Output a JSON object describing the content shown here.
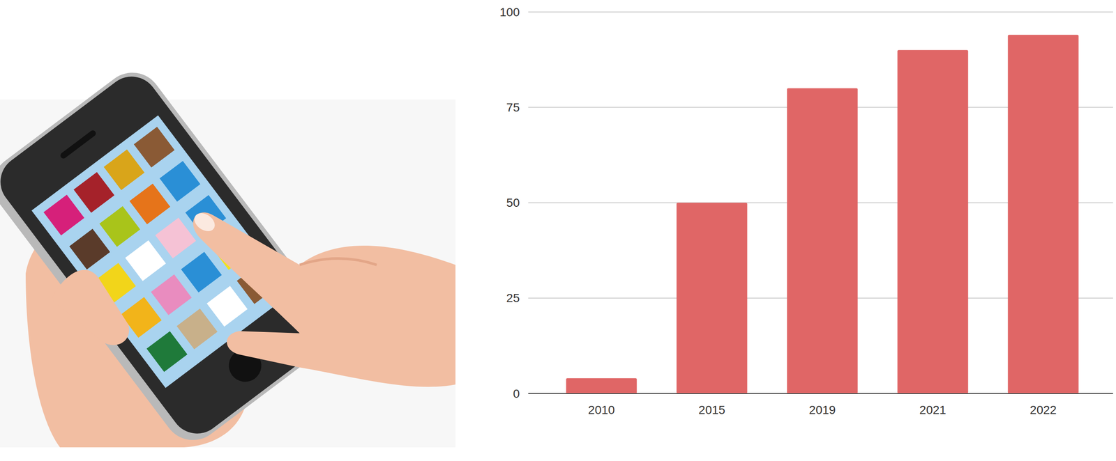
{
  "chart_data": {
    "type": "bar",
    "categories": [
      "2010",
      "2015",
      "2019",
      "2021",
      "2022"
    ],
    "values": [
      4,
      50,
      80,
      90,
      94
    ],
    "color": "#e06666",
    "ylim": [
      0,
      100
    ],
    "yticks": [
      0,
      25,
      50,
      75,
      100
    ],
    "grid": true
  }
}
